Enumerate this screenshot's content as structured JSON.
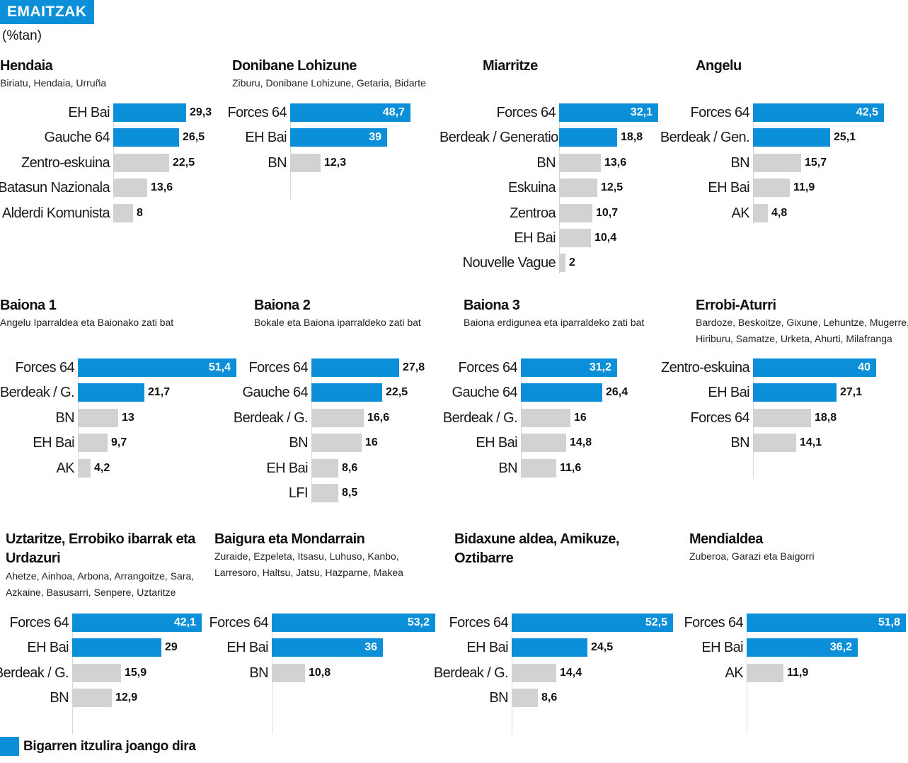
{
  "header": {
    "title": "EMAITZAK",
    "unit": "(%tan)"
  },
  "colors": {
    "accent": "#0a8fd8",
    "neutral": "#d2d2d2",
    "header_bg": "#0a8fd8"
  },
  "legend": {
    "label": "Bigarren itzulira joango dira"
  },
  "chart_data": [
    {
      "type": "bar",
      "title": "Hendaia",
      "subtitle": [
        "Biriatu, Hendaia, Urruña"
      ],
      "categories": [
        "EH Bai",
        "Gauche 64",
        "Zentro-eskuina",
        "Batasun Nazionala",
        "Alderdi Komunista"
      ],
      "values": [
        29.3,
        26.5,
        22.5,
        13.6,
        8
      ],
      "labels": [
        "29,3",
        "26,5",
        "22,5",
        "13,6",
        "8"
      ],
      "qualified": 2
    },
    {
      "type": "bar",
      "title": "Donibane Lohizune",
      "subtitle": [
        "Ziburu, Donibane Lohizune, Getaria, Bidarte"
      ],
      "categories": [
        "Forces 64",
        "EH Bai",
        "BN"
      ],
      "values": [
        48.7,
        39,
        12.3
      ],
      "labels": [
        "48,7",
        "39",
        "12,3"
      ],
      "qualified": 2
    },
    {
      "type": "bar",
      "title": "Miarritze",
      "subtitle": [],
      "categories": [
        "Forces 64",
        "Berdeak / Generations",
        "BN",
        "Eskuina",
        "Zentroa",
        "EH Bai",
        "Nouvelle Vague"
      ],
      "values": [
        32.1,
        18.8,
        13.6,
        12.5,
        10.7,
        10.4,
        2
      ],
      "labels": [
        "32,1",
        "18,8",
        "13,6",
        "12,5",
        "10,7",
        "10,4",
        "2"
      ],
      "qualified": 2
    },
    {
      "type": "bar",
      "title": "Angelu",
      "subtitle": [],
      "categories": [
        "Forces 64",
        "Berdeak / Gen.",
        "BN",
        "EH Bai",
        "AK"
      ],
      "values": [
        42.5,
        25.1,
        15.7,
        11.9,
        4.8
      ],
      "labels": [
        "42,5",
        "25,1",
        "15,7",
        "11,9",
        "4,8"
      ],
      "qualified": 2
    },
    {
      "type": "bar",
      "title": "Baiona 1",
      "subtitle": [
        "Angelu Iparraldea eta Baionako zati bat"
      ],
      "categories": [
        "Forces 64",
        "Berdeak / G.",
        "BN",
        "EH Bai",
        "AK"
      ],
      "values": [
        51.4,
        21.7,
        13,
        9.7,
        4.2
      ],
      "labels": [
        "51,4",
        "21,7",
        "13",
        "9,7",
        "4,2"
      ],
      "qualified": 2
    },
    {
      "type": "bar",
      "title": "Baiona 2",
      "subtitle": [
        "Bokale eta Baiona iparraldeko zati bat"
      ],
      "categories": [
        "Forces 64",
        "Gauche 64",
        "Berdeak / G.",
        "BN",
        "EH Bai",
        "LFI"
      ],
      "values": [
        27.8,
        22.5,
        16.6,
        16,
        8.6,
        8.5
      ],
      "labels": [
        "27,8",
        "22,5",
        "16,6",
        "16",
        "8,6",
        "8,5"
      ],
      "qualified": 2
    },
    {
      "type": "bar",
      "title": "Baiona 3",
      "subtitle": [
        "Baiona erdigunea eta iparraldeko zati bat"
      ],
      "categories": [
        "Forces 64",
        "Gauche 64",
        "Berdeak / G.",
        "EH Bai",
        "BN"
      ],
      "values": [
        31.2,
        26.4,
        16,
        14.8,
        11.6
      ],
      "labels": [
        "31,2",
        "26,4",
        "16",
        "14,8",
        "11,6"
      ],
      "qualified": 2
    },
    {
      "type": "bar",
      "title": "Errobi-Aturri",
      "subtitle": [
        "Bardoze, Beskoitze, Gixune, Lehuntze, Mugerre,",
        "Hiriburu, Samatze, Urketa, Ahurti, Milafranga"
      ],
      "categories": [
        "Zentro-eskuina",
        "EH Bai",
        "Forces 64",
        "BN"
      ],
      "values": [
        40,
        27.1,
        18.8,
        14.1
      ],
      "labels": [
        "40",
        "27,1",
        "18,8",
        "14,1"
      ],
      "qualified": 2
    },
    {
      "type": "bar",
      "title": "Uztaritze, Errobiko ibarrak eta Urdazuri",
      "subtitle": [
        "Ahetze, Ainhoa, Arbona, Arrangoitze, Sara,",
        "Azkaine, Basusarri, Senpere, Uztaritze"
      ],
      "categories": [
        "Forces 64",
        "EH Bai",
        "Berdeak / G.",
        "BN"
      ],
      "values": [
        42.1,
        29,
        15.9,
        12.9
      ],
      "labels": [
        "42,1",
        "29",
        "15,9",
        "12,9"
      ],
      "qualified": 2
    },
    {
      "type": "bar",
      "title": "Baigura eta Mondarrain",
      "subtitle": [
        "Zuraide, Ezpeleta, Itsasu, Luhuso, Kanbo,",
        "Larresoro, Haltsu, Jatsu, Hazparne, Makea"
      ],
      "categories": [
        "Forces 64",
        "EH Bai",
        "BN"
      ],
      "values": [
        53.2,
        36,
        10.8
      ],
      "labels": [
        "53,2",
        "36",
        "10,8"
      ],
      "qualified": 2
    },
    {
      "type": "bar",
      "title": "Bidaxune aldea, Amikuze, Oztibarre",
      "subtitle": [],
      "categories": [
        "Forces 64",
        "EH Bai",
        "Berdeak / G.",
        "BN"
      ],
      "values": [
        52.5,
        24.5,
        14.4,
        8.6
      ],
      "labels": [
        "52,5",
        "24,5",
        "14,4",
        "8,6"
      ],
      "qualified": 2
    },
    {
      "type": "bar",
      "title": "Mendialdea",
      "subtitle": [
        "Zuberoa, Garazi eta Baigorri"
      ],
      "categories": [
        "Forces 64",
        "EH Bai",
        "AK"
      ],
      "values": [
        51.8,
        36.2,
        11.9
      ],
      "labels": [
        "51,8",
        "36,2",
        "11,9"
      ],
      "qualified": 2
    }
  ]
}
